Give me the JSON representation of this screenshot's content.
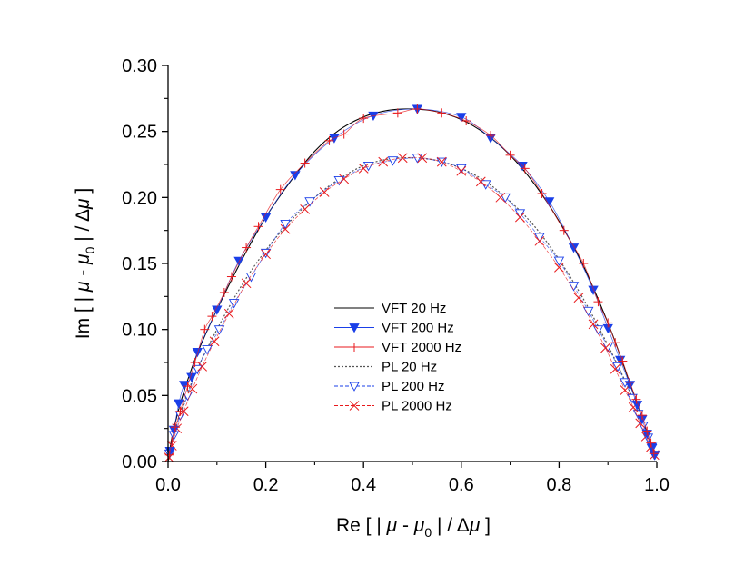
{
  "chart_data": {
    "type": "line",
    "xlabel": "Re [ | μ - μ0 | / Δμ ]",
    "ylabel": "Im [ | μ - μ0 | / Δμ ]",
    "xlabel_parts": {
      "prefix": "Re [ | ",
      "mu": "μ",
      "minus": " - ",
      "mu0": "μ",
      "sub": "0",
      "suffix": " | / Δ",
      "mu_end": "μ",
      "close": " ]"
    },
    "ylabel_parts": {
      "prefix": "Im [ | ",
      "mu": "μ",
      "minus": " - ",
      "mu0": "μ",
      "sub": "0",
      "suffix": " | / Δ",
      "mu_end": "μ",
      "close": " ]"
    },
    "xlim": [
      0,
      1.0
    ],
    "ylim": [
      0,
      0.3
    ],
    "xticks": [
      "0.0",
      "0.2",
      "0.4",
      "0.6",
      "0.8",
      "1.0"
    ],
    "yticks": [
      "0.00",
      "0.05",
      "0.10",
      "0.15",
      "0.20",
      "0.25",
      "0.30"
    ],
    "grid": false,
    "legend_position": "center-left",
    "colors": {
      "black": "#000000",
      "blue": "#1a3fe8",
      "red": "#e8191c",
      "gray": "#555555"
    },
    "series": [
      {
        "name": "VFT 20 Hz",
        "style": "solid-line",
        "color": "#000000",
        "points": [
          [
            0,
            0
          ],
          [
            0.01,
            0.022
          ],
          [
            0.03,
            0.05
          ],
          [
            0.06,
            0.082
          ],
          [
            0.1,
            0.115
          ],
          [
            0.15,
            0.152
          ],
          [
            0.2,
            0.185
          ],
          [
            0.25,
            0.212
          ],
          [
            0.3,
            0.235
          ],
          [
            0.35,
            0.251
          ],
          [
            0.4,
            0.261
          ],
          [
            0.45,
            0.266
          ],
          [
            0.5,
            0.267
          ],
          [
            0.55,
            0.265
          ],
          [
            0.6,
            0.259
          ],
          [
            0.65,
            0.248
          ],
          [
            0.7,
            0.232
          ],
          [
            0.75,
            0.21
          ],
          [
            0.8,
            0.182
          ],
          [
            0.85,
            0.148
          ],
          [
            0.9,
            0.105
          ],
          [
            0.93,
            0.075
          ],
          [
            0.96,
            0.043
          ],
          [
            0.98,
            0.022
          ],
          [
            0.995,
            0.007
          ]
        ]
      },
      {
        "name": "VFT 200 Hz",
        "style": "filled-down-triangle",
        "color": "#1a3fe8",
        "points": [
          [
            0.004,
            0.008
          ],
          [
            0.012,
            0.024
          ],
          [
            0.022,
            0.044
          ],
          [
            0.033,
            0.058
          ],
          [
            0.048,
            0.064
          ],
          [
            0.06,
            0.083
          ],
          [
            0.1,
            0.115
          ],
          [
            0.145,
            0.152
          ],
          [
            0.2,
            0.185
          ],
          [
            0.26,
            0.217
          ],
          [
            0.34,
            0.245
          ],
          [
            0.42,
            0.262
          ],
          [
            0.51,
            0.267
          ],
          [
            0.6,
            0.261
          ],
          [
            0.66,
            0.245
          ],
          [
            0.725,
            0.224
          ],
          [
            0.78,
            0.197
          ],
          [
            0.83,
            0.162
          ],
          [
            0.87,
            0.13
          ],
          [
            0.9,
            0.101
          ],
          [
            0.925,
            0.077
          ],
          [
            0.945,
            0.058
          ],
          [
            0.96,
            0.043
          ],
          [
            0.97,
            0.032
          ],
          [
            0.98,
            0.021
          ],
          [
            0.99,
            0.011
          ],
          [
            0.995,
            0.005
          ]
        ]
      },
      {
        "name": "VFT 2000 Hz",
        "style": "plus",
        "color": "#e8191c",
        "points": [
          [
            0.003,
            0.005
          ],
          [
            0.008,
            0.015
          ],
          [
            0.015,
            0.026
          ],
          [
            0.025,
            0.038
          ],
          [
            0.04,
            0.057
          ],
          [
            0.055,
            0.075
          ],
          [
            0.075,
            0.1
          ],
          [
            0.09,
            0.11
          ],
          [
            0.115,
            0.128
          ],
          [
            0.13,
            0.14
          ],
          [
            0.16,
            0.162
          ],
          [
            0.185,
            0.178
          ],
          [
            0.23,
            0.206
          ],
          [
            0.28,
            0.226
          ],
          [
            0.33,
            0.243
          ],
          [
            0.36,
            0.248
          ],
          [
            0.4,
            0.26
          ],
          [
            0.47,
            0.264
          ],
          [
            0.51,
            0.267
          ],
          [
            0.56,
            0.264
          ],
          [
            0.61,
            0.258
          ],
          [
            0.66,
            0.247
          ],
          [
            0.7,
            0.232
          ],
          [
            0.73,
            0.222
          ],
          [
            0.765,
            0.203
          ],
          [
            0.81,
            0.175
          ],
          [
            0.85,
            0.15
          ],
          [
            0.88,
            0.121
          ],
          [
            0.9,
            0.105
          ],
          [
            0.915,
            0.09
          ],
          [
            0.93,
            0.076
          ],
          [
            0.945,
            0.06
          ],
          [
            0.958,
            0.047
          ],
          [
            0.97,
            0.035
          ],
          [
            0.98,
            0.023
          ],
          [
            0.988,
            0.014
          ],
          [
            0.994,
            0.006
          ]
        ]
      },
      {
        "name": "PL 20 Hz",
        "style": "dotted-line",
        "color": "#555555",
        "points": [
          [
            0,
            0
          ],
          [
            0.01,
            0.018
          ],
          [
            0.03,
            0.042
          ],
          [
            0.06,
            0.07
          ],
          [
            0.1,
            0.1
          ],
          [
            0.15,
            0.133
          ],
          [
            0.2,
            0.16
          ],
          [
            0.25,
            0.182
          ],
          [
            0.3,
            0.2
          ],
          [
            0.35,
            0.214
          ],
          [
            0.4,
            0.224
          ],
          [
            0.45,
            0.229
          ],
          [
            0.5,
            0.23
          ],
          [
            0.55,
            0.228
          ],
          [
            0.6,
            0.222
          ],
          [
            0.65,
            0.212
          ],
          [
            0.7,
            0.197
          ],
          [
            0.75,
            0.178
          ],
          [
            0.8,
            0.153
          ],
          [
            0.85,
            0.123
          ],
          [
            0.9,
            0.088
          ],
          [
            0.94,
            0.057
          ],
          [
            0.97,
            0.03
          ],
          [
            0.99,
            0.01
          ],
          [
            0.998,
            0.003
          ]
        ]
      },
      {
        "name": "PL 200 Hz",
        "style": "open-down-triangle",
        "color": "#1a3fe8",
        "points": [
          [
            0.003,
            0.006
          ],
          [
            0.012,
            0.02
          ],
          [
            0.025,
            0.035
          ],
          [
            0.04,
            0.05
          ],
          [
            0.06,
            0.07
          ],
          [
            0.08,
            0.085
          ],
          [
            0.105,
            0.1
          ],
          [
            0.135,
            0.12
          ],
          [
            0.17,
            0.14
          ],
          [
            0.2,
            0.158
          ],
          [
            0.24,
            0.18
          ],
          [
            0.29,
            0.197
          ],
          [
            0.35,
            0.213
          ],
          [
            0.41,
            0.224
          ],
          [
            0.46,
            0.228
          ],
          [
            0.51,
            0.23
          ],
          [
            0.56,
            0.227
          ],
          [
            0.6,
            0.222
          ],
          [
            0.65,
            0.21
          ],
          [
            0.69,
            0.2
          ],
          [
            0.72,
            0.188
          ],
          [
            0.76,
            0.17
          ],
          [
            0.8,
            0.152
          ],
          [
            0.83,
            0.133
          ],
          [
            0.86,
            0.114
          ],
          [
            0.88,
            0.1
          ],
          [
            0.9,
            0.087
          ],
          [
            0.92,
            0.072
          ],
          [
            0.935,
            0.06
          ],
          [
            0.95,
            0.048
          ],
          [
            0.962,
            0.036
          ],
          [
            0.972,
            0.027
          ],
          [
            0.982,
            0.018
          ],
          [
            0.99,
            0.01
          ],
          [
            0.996,
            0.005
          ]
        ]
      },
      {
        "name": "PL 2000 Hz",
        "style": "cross",
        "color": "#e8191c",
        "points": [
          [
            0.002,
            0.003
          ],
          [
            0.008,
            0.012
          ],
          [
            0.018,
            0.025
          ],
          [
            0.032,
            0.038
          ],
          [
            0.05,
            0.055
          ],
          [
            0.07,
            0.072
          ],
          [
            0.095,
            0.091
          ],
          [
            0.125,
            0.112
          ],
          [
            0.16,
            0.135
          ],
          [
            0.2,
            0.157
          ],
          [
            0.24,
            0.176
          ],
          [
            0.28,
            0.191
          ],
          [
            0.32,
            0.204
          ],
          [
            0.36,
            0.214
          ],
          [
            0.4,
            0.222
          ],
          [
            0.44,
            0.227
          ],
          [
            0.48,
            0.23
          ],
          [
            0.52,
            0.23
          ],
          [
            0.56,
            0.227
          ],
          [
            0.6,
            0.22
          ],
          [
            0.64,
            0.212
          ],
          [
            0.68,
            0.2
          ],
          [
            0.72,
            0.185
          ],
          [
            0.76,
            0.167
          ],
          [
            0.8,
            0.147
          ],
          [
            0.84,
            0.124
          ],
          [
            0.87,
            0.104
          ],
          [
            0.895,
            0.086
          ],
          [
            0.915,
            0.07
          ],
          [
            0.935,
            0.054
          ],
          [
            0.952,
            0.041
          ],
          [
            0.966,
            0.029
          ],
          [
            0.978,
            0.019
          ],
          [
            0.988,
            0.011
          ],
          [
            0.995,
            0.005
          ]
        ]
      }
    ]
  }
}
